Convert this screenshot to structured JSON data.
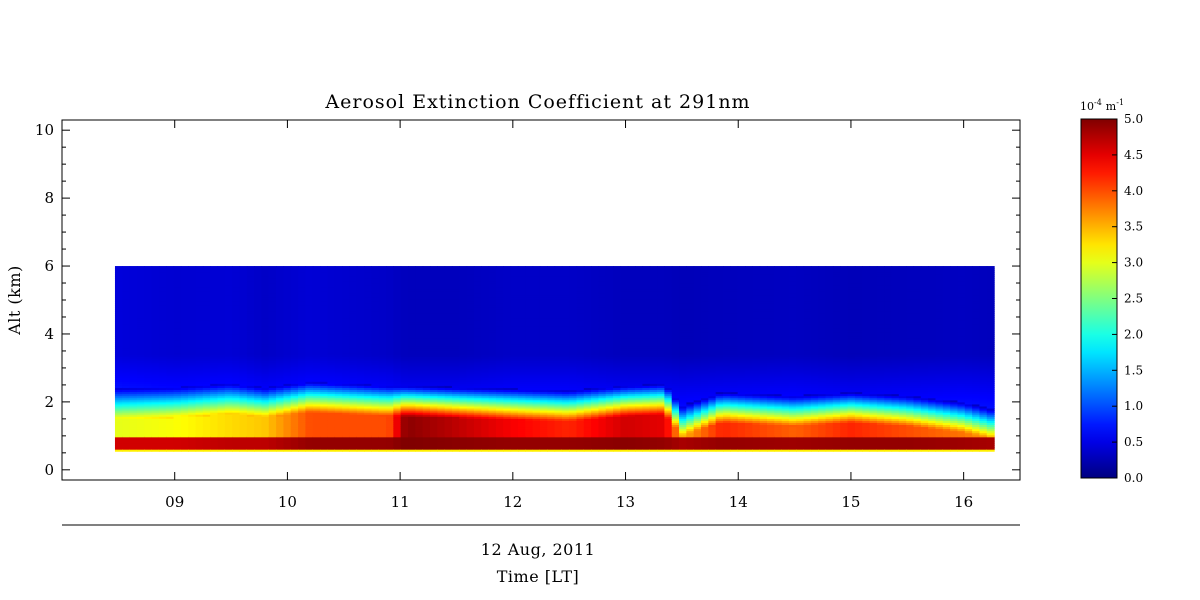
{
  "chart_data": {
    "type": "heatmap",
    "title": "Aerosol Extinction Coefficient at 291nm",
    "ylabel": "Alt (km)",
    "xlabel_date": "12 Aug, 2011",
    "xlabel": "Time [LT]",
    "x_range_hours": [
      8.0,
      16.5
    ],
    "x_data_range_hours": [
      8.47,
      16.27
    ],
    "x_tick_labels": [
      "09",
      "10",
      "11",
      "12",
      "13",
      "14",
      "15",
      "16"
    ],
    "x_tick_values": [
      9,
      10,
      11,
      12,
      13,
      14,
      15,
      16
    ],
    "ylim": [
      -0.3,
      10.3
    ],
    "y_data_range_km": [
      0.55,
      6.0
    ],
    "y_tick_labels": [
      "0",
      "2",
      "4",
      "6",
      "8",
      "10"
    ],
    "y_tick_values": [
      0,
      2,
      4,
      6,
      8,
      10
    ],
    "colorbar": {
      "unit_base": "10",
      "unit_exp": "-4",
      "unit_rest": "m",
      "unit_rest_exp": "-1",
      "min": 0.0,
      "max": 5.0,
      "tick_labels": [
        "0.0",
        "0.5",
        "1.0",
        "1.5",
        "2.0",
        "2.5",
        "3.0",
        "3.5",
        "4.0",
        "4.5",
        "5.0"
      ],
      "tick_values": [
        0.0,
        0.5,
        1.0,
        1.5,
        2.0,
        2.5,
        3.0,
        3.5,
        4.0,
        4.5,
        5.0
      ],
      "colormap": "jet"
    },
    "profiles": {
      "times": [
        8.47,
        9.0,
        9.5,
        9.8,
        10.2,
        10.9,
        11.05,
        11.5,
        12.0,
        12.5,
        13.0,
        13.35,
        13.5,
        13.85,
        14.5,
        15.0,
        15.5,
        16.0,
        16.27
      ],
      "layer_top_km": [
        1.5,
        1.55,
        1.65,
        1.55,
        1.7,
        1.6,
        1.6,
        1.55,
        1.5,
        1.45,
        1.6,
        1.65,
        1.0,
        1.4,
        1.3,
        1.4,
        1.3,
        1.1,
        0.9
      ],
      "layer_core_value": [
        3.0,
        3.1,
        3.3,
        3.4,
        4.0,
        4.0,
        4.95,
        4.7,
        4.4,
        4.2,
        4.6,
        4.5,
        3.5,
        4.2,
        3.9,
        4.2,
        4.0,
        3.8,
        3.6
      ],
      "surface_peak_value": [
        4.6,
        4.6,
        4.7,
        4.7,
        4.9,
        4.9,
        5.0,
        4.95,
        4.9,
        4.9,
        4.95,
        4.9,
        4.8,
        4.9,
        4.85,
        4.9,
        4.9,
        4.85,
        4.8
      ],
      "background_value": [
        0.45,
        0.4,
        0.42,
        0.35,
        0.42,
        0.35,
        0.3,
        0.3,
        0.35,
        0.35,
        0.3,
        0.3,
        0.28,
        0.3,
        0.32,
        0.28,
        0.3,
        0.32,
        0.3
      ]
    }
  }
}
